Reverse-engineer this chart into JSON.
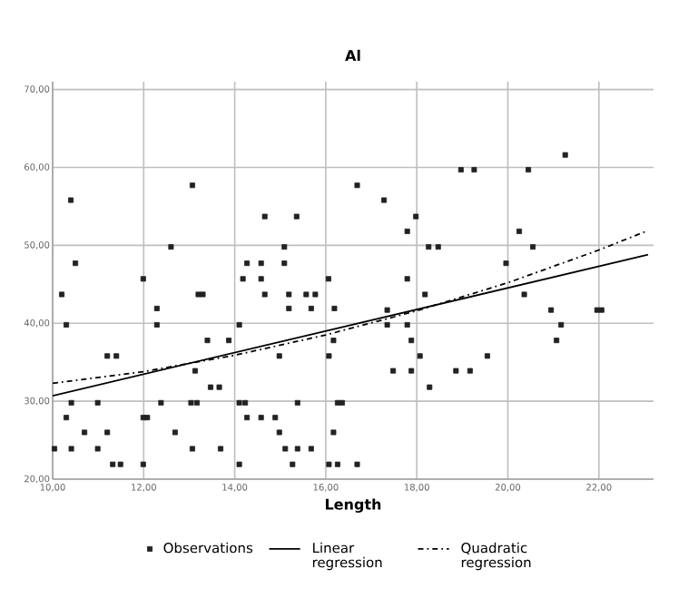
{
  "chart_data": {
    "type": "scatter",
    "title": "Al",
    "xlabel": "Length",
    "xlim": [
      10,
      23.2
    ],
    "ylim": [
      20,
      71
    ],
    "xticks": [
      {
        "value": 10,
        "label": "10,00"
      },
      {
        "value": 12,
        "label": "12,00"
      },
      {
        "value": 14,
        "label": "14,00"
      },
      {
        "value": 16,
        "label": "16,00"
      },
      {
        "value": 18,
        "label": "18,00"
      },
      {
        "value": 20,
        "label": "20,00"
      },
      {
        "value": 22,
        "label": "22,00"
      }
    ],
    "yticks": [
      {
        "value": 20,
        "label": "20,00"
      },
      {
        "value": 30,
        "label": "30,00"
      },
      {
        "value": 40,
        "label": "40,00"
      },
      {
        "value": 50,
        "label": "50,00"
      },
      {
        "value": 60,
        "label": "60,00"
      },
      {
        "value": 70,
        "label": "70,00"
      }
    ],
    "grid": true,
    "legend": "bottom",
    "series": [
      {
        "name": "Observations",
        "marker": "square",
        "color": "#222222",
        "x": [
          10.4,
          13.07,
          14.66,
          15.36,
          12.6,
          15.09,
          10.5,
          14.27,
          14.58,
          15.09,
          11.99,
          14.18,
          14.58,
          16.06,
          10.2,
          13.2,
          13.3,
          14.66,
          15.19,
          15.57,
          15.77,
          16.69,
          17.28,
          17.98,
          17.79,
          18.97,
          19.26,
          20.45,
          21.26,
          18.26,
          18.47,
          20.25,
          20.55,
          19.96,
          17.79,
          18.18,
          20.36,
          12.29,
          15.19,
          15.68,
          16.19,
          10.3,
          12.29,
          14.1,
          13.4,
          13.87,
          16.17,
          11.2,
          11.4,
          14.98,
          16.07,
          13.13,
          13.47,
          13.66,
          10.41,
          10.99,
          12.38,
          13.04,
          13.17,
          14.1,
          14.23,
          15.38,
          16.26,
          16.36,
          10.3,
          11.99,
          12.08,
          14.27,
          14.58,
          14.89,
          10.7,
          11.2,
          12.69,
          14.98,
          16.17,
          10.04,
          10.41,
          10.99,
          13.07,
          13.69,
          15.11,
          15.38,
          15.68,
          11.32,
          11.49,
          11.99,
          14.1,
          15.27,
          16.07,
          16.26,
          16.69,
          17.35,
          20.95,
          21.96,
          22.06,
          17.35,
          17.79,
          21.17,
          17.88,
          21.07,
          18.07,
          19.55,
          17.48,
          17.88,
          18.86,
          19.17,
          18.28
        ],
        "values": [
          55.8,
          57.7,
          53.7,
          53.7,
          49.8,
          49.8,
          47.7,
          47.7,
          47.7,
          47.7,
          45.7,
          45.7,
          45.7,
          45.7,
          43.7,
          43.7,
          43.7,
          43.7,
          43.7,
          43.7,
          43.7,
          57.7,
          55.8,
          53.7,
          51.8,
          59.7,
          59.7,
          59.7,
          61.6,
          49.8,
          49.8,
          51.8,
          49.8,
          47.7,
          45.7,
          43.7,
          43.7,
          41.9,
          41.9,
          41.9,
          41.9,
          39.8,
          39.8,
          39.8,
          37.8,
          37.8,
          37.8,
          35.8,
          35.8,
          35.8,
          35.8,
          33.9,
          31.8,
          31.8,
          29.8,
          29.8,
          29.8,
          29.8,
          29.8,
          29.8,
          29.8,
          29.8,
          29.8,
          29.8,
          27.9,
          27.9,
          27.9,
          27.9,
          27.9,
          27.9,
          26.0,
          26.0,
          26.0,
          26.0,
          26.0,
          23.9,
          23.9,
          23.9,
          23.9,
          23.9,
          23.9,
          23.9,
          23.9,
          21.9,
          21.9,
          21.9,
          21.9,
          21.9,
          21.9,
          21.9,
          21.9,
          41.7,
          41.7,
          41.7,
          41.7,
          39.8,
          39.8,
          39.8,
          37.8,
          37.8,
          35.8,
          35.8,
          33.9,
          33.9,
          33.9,
          33.9,
          31.8
        ]
      },
      {
        "name": "Linear regression",
        "type": "line",
        "color": "#000000",
        "line_style": "solid",
        "marker": "none",
        "x": [
          10,
          23.08
        ],
        "values": [
          30.7,
          48.8
        ]
      },
      {
        "name": "Quadratic regression",
        "type": "line",
        "color": "#000000",
        "line_style": "dashed",
        "marker": "none",
        "x": [
          10,
          12,
          14,
          16,
          18,
          20,
          22,
          23.08
        ],
        "values": [
          32.3,
          33.8,
          35.9,
          38.5,
          41.6,
          45.2,
          49.4,
          51.9
        ]
      }
    ]
  }
}
